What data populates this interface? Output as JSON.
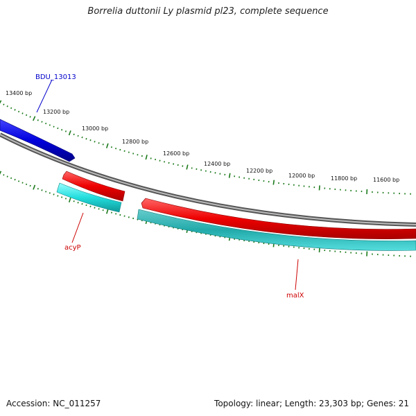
{
  "title": "Borrelia duttonii Ly plasmid pl23, complete sequence",
  "footer": {
    "accession": "Accession: NC_011257",
    "summary": "Topology: linear; Length: 23,303 bp; Genes: 21"
  },
  "tick_labels": [
    "13400 bp",
    "13200 bp",
    "13000 bp",
    "12800 bp",
    "12600 bp",
    "12400 bp",
    "12200 bp",
    "12000 bp",
    "11800 bp",
    "11600 bp"
  ],
  "genes": [
    {
      "name": "BDU_13013",
      "color": "#0000cc"
    },
    {
      "name": "acyP",
      "color": "#cc0000"
    },
    {
      "name": "malX",
      "color": "#cc0000"
    }
  ],
  "colors": {
    "backbone": "#888888",
    "tick": "#1a7a1a",
    "forward_gene": "#ee0000",
    "reverse_gene": "#00cccc",
    "other_strand_gene": "#0000dd"
  }
}
